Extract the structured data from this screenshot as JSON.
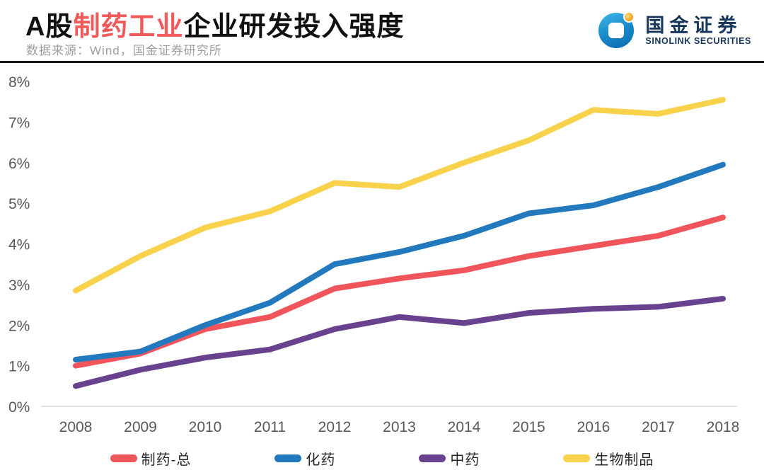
{
  "header": {
    "title_black1": "A股",
    "title_red": "制药工业",
    "title_black2": "企业研发投入强度",
    "subtitle": "数据来源：Wind，国金证券研究所"
  },
  "logo": {
    "name_cn": "国金证券",
    "name_en": "SINOLINK SECURITIES"
  },
  "colors": {
    "title_accent": "#f05a5a",
    "divider": "#161616",
    "axis_text": "#595959",
    "axis_line": "#d9d9d9",
    "logo_blue": "#1587c6",
    "logo_orange": "#f0a01e",
    "logo_navy": "#16365c"
  },
  "chart_data": {
    "type": "line",
    "title": "A股制药工业企业研发投入强度",
    "x": [
      2008,
      2009,
      2010,
      2011,
      2012,
      2013,
      2014,
      2015,
      2016,
      2017,
      2018
    ],
    "series": [
      {
        "name": "制药-总",
        "color": "#f0555b",
        "values": [
          1.0,
          1.3,
          1.9,
          2.2,
          2.9,
          3.15,
          3.35,
          3.7,
          3.95,
          4.2,
          4.65
        ]
      },
      {
        "name": "化药",
        "color": "#2279be",
        "values": [
          1.15,
          1.35,
          2.0,
          2.55,
          3.5,
          3.8,
          4.2,
          4.75,
          4.95,
          5.4,
          5.95
        ]
      },
      {
        "name": "中药",
        "color": "#68428f",
        "values": [
          0.5,
          0.9,
          1.2,
          1.4,
          1.9,
          2.2,
          2.05,
          2.3,
          2.4,
          2.45,
          2.65
        ]
      },
      {
        "name": "生物制品",
        "color": "#f8d24b",
        "values": [
          2.85,
          3.7,
          4.4,
          4.8,
          5.5,
          5.4,
          6.0,
          6.55,
          7.3,
          7.2,
          7.55
        ]
      }
    ],
    "xlabel": "",
    "ylabel": "",
    "ylim": [
      0,
      8
    ],
    "ytick_step": 1,
    "ytick_suffix": "%",
    "grid": false,
    "legend_position": "bottom"
  }
}
